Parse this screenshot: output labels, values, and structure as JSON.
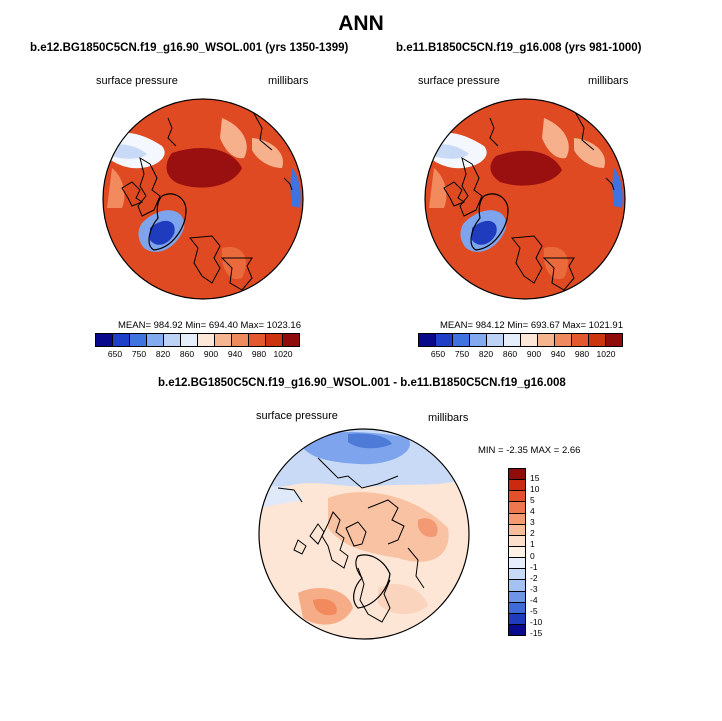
{
  "figure": {
    "title": "ANN"
  },
  "panels": [
    {
      "case": "b.e12.BG1850C5CN.f19_g16.90_WSOL.001 (yrs 1350-1399)",
      "variable": "surface pressure",
      "units": "millibars",
      "stats": "MEAN= 984.92  Min= 694.40  Max= 1023.16"
    },
    {
      "case": "b.e11.B1850C5CN.f19_g16.008 (yrs 981-1000)",
      "variable": "surface pressure",
      "units": "millibars",
      "stats": "MEAN= 984.12  Min= 693.67  Max= 1021.91"
    },
    {
      "case": "b.e12.BG1850C5CN.f19_g16.90_WSOL.001 - b.e11.B1850C5CN.f19_g16.008",
      "variable": "surface pressure",
      "units": "millibars",
      "stats": "MIN =  -2.35 MAX =   2.66"
    }
  ],
  "colorbar_abs": {
    "ticks": [
      "650",
      "750",
      "820",
      "860",
      "900",
      "940",
      "980",
      "1020"
    ],
    "colors": [
      "#08088c",
      "#1f3fc8",
      "#3f73e0",
      "#83a9ef",
      "#bdd3f5",
      "#e6eefb",
      "#fde7d6",
      "#f7b58f",
      "#ef8a5e",
      "#e4582e",
      "#cc3410",
      "#8e0c0c"
    ]
  },
  "colorbar_diff": {
    "ticks": [
      "15",
      "10",
      "5",
      "4",
      "3",
      "2",
      "1",
      "0",
      "-1",
      "-2",
      "-3",
      "-4",
      "-5",
      "-10",
      "-15"
    ],
    "colors": [
      "#8e0c0c",
      "#cc2a10",
      "#e2502c",
      "#ed774f",
      "#f49972",
      "#f9bc9a",
      "#fde0cb",
      "#fef1e6",
      "#e6eefb",
      "#c7dbf6",
      "#a3c2f1",
      "#6f96e6",
      "#3e6bd8",
      "#1f3cbe",
      "#0a0a8c"
    ]
  }
}
